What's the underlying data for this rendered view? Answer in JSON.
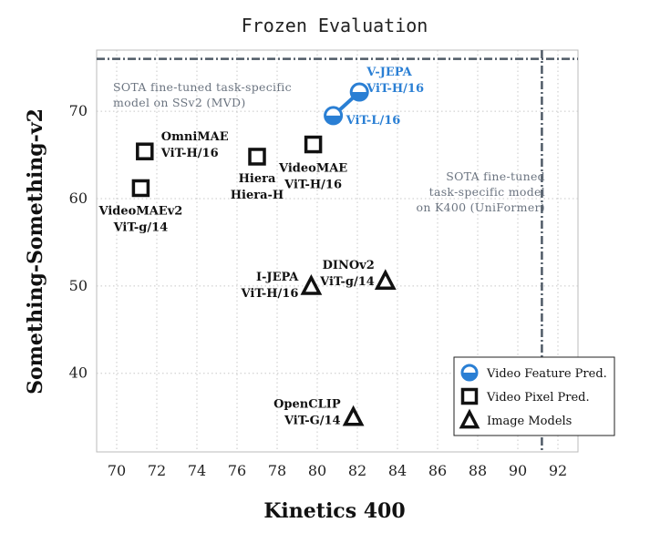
{
  "chart_data": {
    "type": "scatter",
    "title": "Frozen Evaluation",
    "xlabel": "Kinetics 400",
    "ylabel": "Something-Something-v2",
    "xlim": [
      69,
      93
    ],
    "ylim": [
      31,
      77
    ],
    "xticks": [
      70,
      72,
      74,
      76,
      78,
      80,
      82,
      84,
      86,
      88,
      90,
      92
    ],
    "yticks": [
      40,
      50,
      60,
      70
    ],
    "grid": true,
    "legend_position": "bottom-right",
    "colors": {
      "video_feature": "#2a7fd4",
      "markers": "#111111",
      "reference_line": "#4f5a66",
      "note_text": "#6b7480"
    },
    "series": [
      {
        "name": "Video Feature Pred.",
        "marker": "half-filled-circle",
        "points": [
          {
            "x": 82.1,
            "y": 72.2,
            "label": [
              "V-JEPA",
              "ViT-H/16"
            ]
          },
          {
            "x": 80.8,
            "y": 69.5,
            "label": [
              "ViT-L/16"
            ]
          }
        ],
        "connected": true
      },
      {
        "name": "Video Pixel Pred.",
        "marker": "square",
        "points": [
          {
            "x": 71.4,
            "y": 65.4,
            "label": [
              "OmniMAE",
              "ViT-H/16"
            ]
          },
          {
            "x": 71.2,
            "y": 61.2,
            "label": [
              "VideoMAEv2",
              "ViT-g/14"
            ]
          },
          {
            "x": 77.0,
            "y": 64.8,
            "label": [
              "Hiera",
              "Hiera-H"
            ]
          },
          {
            "x": 79.8,
            "y": 66.2,
            "label": [
              "VideoMAE",
              "ViT-H/16"
            ]
          }
        ]
      },
      {
        "name": "Image Models",
        "marker": "triangle",
        "points": [
          {
            "x": 79.7,
            "y": 50.0,
            "label": [
              "I-JEPA",
              "ViT-H/16"
            ]
          },
          {
            "x": 83.4,
            "y": 50.6,
            "label": [
              "DINOv2",
              "ViT-g/14"
            ]
          },
          {
            "x": 81.8,
            "y": 35.0,
            "label": [
              "OpenCLIP",
              "ViT-G/14"
            ]
          }
        ]
      }
    ],
    "reference_lines": [
      {
        "axis": "y",
        "value": 76,
        "label": [
          "SOTA  fine-tuned  task-specific",
          "model  on  SSv2  (MVD)"
        ]
      },
      {
        "axis": "x",
        "value": 91.2,
        "label": [
          "SOTA  fine-tuned",
          "task-specific  model",
          "on  K400  (UniFormer)"
        ]
      }
    ]
  }
}
